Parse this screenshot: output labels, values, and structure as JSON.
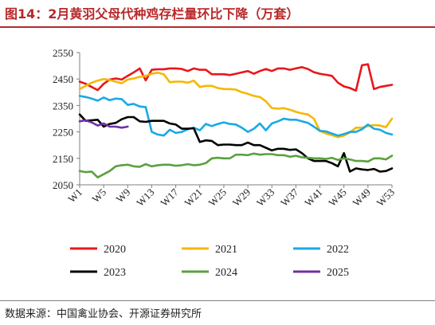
{
  "title": "图14：2月黄羽父母代种鸡存栏量环比下降（万套）",
  "source": "数据来源：中国禽业协会、开源证券研究所",
  "colors": {
    "title": "#b8282a",
    "2020": "#e8161b",
    "2021": "#f5b800",
    "2022": "#19a9e6",
    "2023": "#000000",
    "2024": "#5ba03f",
    "2025": "#7030a0"
  },
  "chart_data": {
    "type": "line",
    "title": "图14：2月黄羽父母代种鸡存栏量环比下降（万套）",
    "xlabel": "",
    "ylabel": "",
    "ylim": [
      2050,
      2550
    ],
    "yticks": [
      2050,
      2150,
      2250,
      2350,
      2450,
      2550
    ],
    "x_range": [
      1,
      53
    ],
    "xticks": [
      "W1",
      "W5",
      "W9",
      "W13",
      "W17",
      "W21",
      "W25",
      "W29",
      "W33",
      "W37",
      "W41",
      "W45",
      "W49",
      "W53"
    ],
    "xtick_weeks": [
      1,
      5,
      9,
      13,
      17,
      21,
      25,
      29,
      33,
      37,
      41,
      45,
      49,
      53
    ],
    "grid": false,
    "legend_position": "bottom",
    "series": [
      {
        "name": "2020",
        "color": "#e8161b",
        "x": [
          1,
          2,
          3,
          4,
          5,
          6,
          7,
          8,
          9,
          10,
          11,
          12,
          13,
          14,
          15,
          16,
          17,
          18,
          19,
          20,
          21,
          22,
          23,
          24,
          25,
          26,
          27,
          28,
          29,
          30,
          31,
          32,
          33,
          34,
          35,
          36,
          37,
          38,
          39,
          40,
          41,
          42,
          43,
          44,
          45,
          46,
          47,
          48,
          49,
          50,
          51,
          52,
          53
        ],
        "values": [
          2440,
          2432,
          2420,
          2408,
          2432,
          2448,
          2452,
          2448,
          2462,
          2475,
          2490,
          2445,
          2485,
          2487,
          2487,
          2490,
          2490,
          2488,
          2480,
          2490,
          2485,
          2485,
          2468,
          2468,
          2468,
          2465,
          2470,
          2475,
          2480,
          2470,
          2480,
          2488,
          2480,
          2490,
          2490,
          2485,
          2490,
          2495,
          2488,
          2476,
          2470,
          2466,
          2462,
          2436,
          2422,
          2416,
          2406,
          2502,
          2506,
          2412,
          2420,
          2424,
          2428
        ]
      },
      {
        "name": "2021",
        "color": "#f5b800",
        "x": [
          1,
          2,
          3,
          4,
          5,
          6,
          7,
          8,
          9,
          10,
          11,
          12,
          13,
          14,
          15,
          16,
          17,
          18,
          19,
          20,
          21,
          22,
          23,
          24,
          25,
          26,
          27,
          28,
          29,
          30,
          31,
          32,
          33,
          34,
          35,
          36,
          37,
          38,
          39,
          40,
          41,
          42,
          43,
          44,
          45,
          46,
          47,
          48,
          49,
          50,
          51,
          52,
          53
        ],
        "values": [
          2412,
          2424,
          2436,
          2444,
          2450,
          2446,
          2440,
          2434,
          2448,
          2452,
          2458,
          2462,
          2470,
          2474,
          2468,
          2438,
          2440,
          2440,
          2436,
          2444,
          2420,
          2424,
          2424,
          2416,
          2412,
          2412,
          2410,
          2400,
          2394,
          2386,
          2382,
          2366,
          2340,
          2338,
          2340,
          2334,
          2326,
          2320,
          2316,
          2300,
          2254,
          2244,
          2238,
          2230,
          2236,
          2248,
          2266,
          2266,
          2272,
          2276,
          2274,
          2268,
          2300
        ]
      },
      {
        "name": "2022",
        "color": "#19a9e6",
        "x": [
          1,
          2,
          3,
          4,
          5,
          6,
          7,
          8,
          9,
          10,
          11,
          12,
          13,
          14,
          15,
          16,
          17,
          18,
          19,
          20,
          21,
          22,
          23,
          24,
          25,
          26,
          27,
          28,
          29,
          30,
          31,
          32,
          33,
          34,
          35,
          36,
          37,
          38,
          39,
          40,
          41,
          42,
          43,
          44,
          45,
          46,
          47,
          48,
          49,
          50,
          51,
          52,
          53
        ],
        "values": [
          2386,
          2382,
          2376,
          2368,
          2380,
          2370,
          2376,
          2374,
          2352,
          2356,
          2346,
          2344,
          2250,
          2240,
          2236,
          2258,
          2246,
          2250,
          2260,
          2266,
          2256,
          2280,
          2272,
          2280,
          2286,
          2280,
          2278,
          2266,
          2250,
          2262,
          2282,
          2256,
          2282,
          2290,
          2300,
          2296,
          2296,
          2290,
          2284,
          2270,
          2254,
          2252,
          2244,
          2236,
          2242,
          2250,
          2250,
          2260,
          2278,
          2262,
          2258,
          2246,
          2240
        ]
      },
      {
        "name": "2023",
        "color": "#000000",
        "x": [
          1,
          2,
          3,
          4,
          5,
          6,
          7,
          8,
          9,
          10,
          11,
          12,
          13,
          14,
          15,
          16,
          17,
          18,
          19,
          20,
          21,
          22,
          23,
          24,
          25,
          26,
          27,
          28,
          29,
          30,
          31,
          32,
          33,
          34,
          35,
          36,
          37,
          38,
          39,
          40,
          41,
          42,
          43,
          44,
          45,
          46,
          47,
          48,
          49,
          50,
          51,
          52,
          53
        ],
        "values": [
          2316,
          2292,
          2294,
          2296,
          2270,
          2280,
          2284,
          2298,
          2306,
          2306,
          2290,
          2288,
          2292,
          2292,
          2292,
          2282,
          2278,
          2262,
          2262,
          2264,
          2212,
          2218,
          2216,
          2200,
          2202,
          2202,
          2200,
          2200,
          2210,
          2200,
          2200,
          2190,
          2180,
          2186,
          2186,
          2182,
          2184,
          2170,
          2150,
          2140,
          2140,
          2140,
          2132,
          2120,
          2170,
          2100,
          2112,
          2108,
          2106,
          2110,
          2100,
          2102,
          2112
        ]
      },
      {
        "name": "2024",
        "color": "#5ba03f",
        "x": [
          1,
          2,
          3,
          4,
          5,
          6,
          7,
          8,
          9,
          10,
          11,
          12,
          13,
          14,
          15,
          16,
          17,
          18,
          19,
          20,
          21,
          22,
          23,
          24,
          25,
          26,
          27,
          28,
          29,
          30,
          31,
          32,
          33,
          34,
          35,
          36,
          37,
          38,
          39,
          40,
          41,
          42,
          43,
          44,
          45,
          46,
          47,
          48,
          49,
          50,
          51,
          52,
          53
        ],
        "values": [
          2102,
          2098,
          2100,
          2078,
          2090,
          2102,
          2120,
          2124,
          2126,
          2120,
          2118,
          2128,
          2120,
          2124,
          2126,
          2126,
          2122,
          2124,
          2128,
          2124,
          2126,
          2132,
          2150,
          2152,
          2150,
          2150,
          2164,
          2164,
          2162,
          2168,
          2164,
          2166,
          2166,
          2162,
          2162,
          2156,
          2160,
          2154,
          2152,
          2150,
          2150,
          2148,
          2152,
          2144,
          2150,
          2146,
          2140,
          2140,
          2138,
          2150,
          2150,
          2146,
          2160
        ]
      },
      {
        "name": "2025",
        "color": "#7030a0",
        "x": [
          1,
          2,
          3,
          4,
          5,
          6,
          7,
          8,
          9
        ],
        "values": [
          2290,
          2294,
          2286,
          2274,
          2282,
          2270,
          2270,
          2266,
          2270
        ]
      }
    ]
  }
}
